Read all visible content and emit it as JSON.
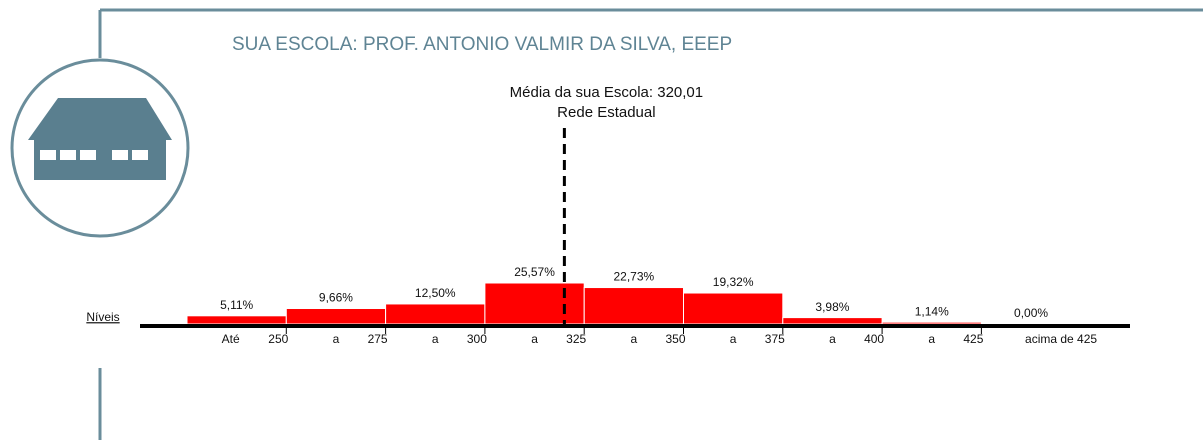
{
  "chart_data": {
    "type": "bar",
    "title": "SUA ESCOLA: PROF. ANTONIO VALMIR DA SILVA, EEEP",
    "x_label": "Níveis",
    "mean": 320.01,
    "mean_label": "Média da sua Escola: 320,01",
    "mean_sublabel": "Rede Estadual",
    "categories": [
      "Até",
      "a",
      "a",
      "a",
      "a",
      "a",
      "a",
      "a",
      "acima de 425"
    ],
    "values": [
      5.11,
      9.66,
      12.5,
      25.57,
      22.73,
      19.32,
      3.98,
      1.14,
      0.0
    ],
    "value_labels": [
      "5,11%",
      "9,66%",
      "12,50%",
      "25,57%",
      "22,73%",
      "19,32%",
      "3,98%",
      "1,14%",
      "0,00%"
    ],
    "xticks": [
      250,
      275,
      300,
      325,
      350,
      375,
      400,
      425
    ],
    "color": "#ff0000"
  }
}
